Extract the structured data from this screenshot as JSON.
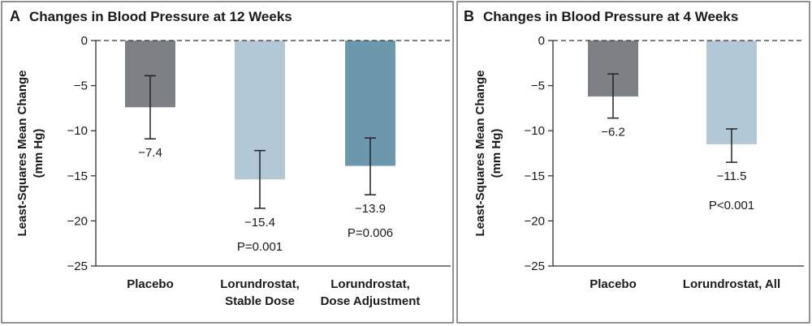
{
  "chart_data": [
    {
      "type": "bar",
      "panel_letter": "A",
      "title": "Changes in Blood Pressure at 12 Weeks",
      "ylabel_lines": [
        "Least-Squares Mean Change",
        "(mm Hg)"
      ],
      "ylim": [
        -25,
        0
      ],
      "yticks": [
        0,
        -5,
        -10,
        -15,
        -20,
        -25
      ],
      "ytick_labels": [
        "0",
        "−5",
        "−10",
        "−15",
        "−20",
        "−25"
      ],
      "categories": [
        {
          "lines": [
            "Placebo"
          ],
          "value": -7.4,
          "value_label": "−7.4",
          "err_low": -10.9,
          "err_high": -3.9,
          "color": "#7d8084",
          "p_value": ""
        },
        {
          "lines": [
            "Lorundrostat,",
            "Stable Dose"
          ],
          "value": -15.4,
          "value_label": "−15.4",
          "err_low": -18.6,
          "err_high": -12.2,
          "color": "#b3c8d6",
          "p_value": "P=0.001"
        },
        {
          "lines": [
            "Lorundrostat,",
            "Dose Adjustment"
          ],
          "value": -13.9,
          "value_label": "−13.9",
          "err_low": -17.1,
          "err_high": -10.8,
          "color": "#6b98ad",
          "p_value": "P=0.006"
        }
      ],
      "zero_line": "dashed"
    },
    {
      "type": "bar",
      "panel_letter": "B",
      "title": "Changes in Blood Pressure at 4 Weeks",
      "ylabel_lines": [
        "Least-Squares Mean Change",
        "(mm Hg)"
      ],
      "ylim": [
        -25,
        0
      ],
      "yticks": [
        0,
        -5,
        -10,
        -15,
        -20,
        -25
      ],
      "ytick_labels": [
        "0",
        "−5",
        "−10",
        "−15",
        "−20",
        "−25"
      ],
      "categories": [
        {
          "lines": [
            "Placebo"
          ],
          "value": -6.2,
          "value_label": "−6.2",
          "err_low": -8.6,
          "err_high": -3.7,
          "color": "#7d8084",
          "p_value": ""
        },
        {
          "lines": [
            "Lorundrostat, All"
          ],
          "value": -11.5,
          "value_label": "−11.5",
          "err_low": -13.5,
          "err_high": -9.8,
          "color": "#b3c8d6",
          "p_value": "P<0.001"
        }
      ],
      "zero_line": "dashed"
    }
  ]
}
